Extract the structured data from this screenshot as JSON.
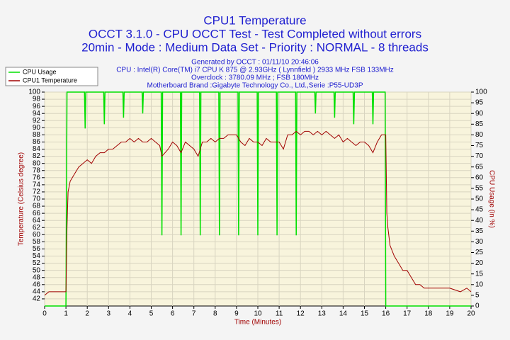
{
  "chart_data": {
    "type": "line",
    "title": "CPU1 Temperature",
    "subtitles": [
      "OCCT 3.1.0 - CPU OCCT Test - Test Completed without errors",
      "20min - Mode : Medium Data Set - Priority : NORMAL - 8 threads"
    ],
    "info": [
      "Generated by OCCT : 01/11/10 20:46:06",
      "CPU : Intel(R) Core(TM) i7 CPU K 875 @ 2.93GHz ( Lynnfield ) 2933 MHz FSB 133MHz",
      "Overclock : 3780.09 MHz ; FSB 180MHz",
      "Motherboard Brand :Gigabyte Technology Co., Ltd.,Serie :P55-UD3P"
    ],
    "xlabel": "Time (Minutes)",
    "ylabel": "Temperature (Celsius degree)",
    "y2label": "CPU Usage (in %)",
    "xlim": [
      0,
      20
    ],
    "xticks": [
      0,
      1,
      2,
      3,
      4,
      5,
      6,
      7,
      8,
      9,
      10,
      11,
      12,
      13,
      14,
      15,
      16,
      17,
      18,
      19,
      20
    ],
    "ylim": [
      40,
      100
    ],
    "yticks": [
      42,
      44,
      46,
      48,
      50,
      52,
      54,
      56,
      58,
      60,
      62,
      64,
      66,
      68,
      70,
      72,
      74,
      76,
      78,
      80,
      82,
      84,
      86,
      88,
      90,
      92,
      94,
      96,
      98,
      100
    ],
    "y2lim": [
      0,
      100
    ],
    "y2ticks": [
      0,
      5,
      10,
      15,
      20,
      25,
      30,
      35,
      40,
      45,
      50,
      55,
      60,
      65,
      70,
      75,
      80,
      85,
      90,
      95,
      100
    ],
    "grid": true,
    "legend": "upper left",
    "series": [
      {
        "name": "CPU Usage",
        "color": "#00e000",
        "axis": "y2",
        "x": [
          0,
          1,
          1.05,
          1.87,
          1.9,
          1.93,
          2.77,
          2.8,
          2.83,
          3.67,
          3.7,
          3.73,
          4.57,
          4.6,
          4.63,
          5.47,
          5.5,
          5.53,
          6.37,
          6.4,
          6.43,
          7.27,
          7.3,
          7.33,
          8.17,
          8.2,
          8.23,
          9.07,
          9.1,
          9.13,
          9.97,
          10,
          10.03,
          10.87,
          10.9,
          10.93,
          11.77,
          11.8,
          11.83,
          12.67,
          12.7,
          12.73,
          13.57,
          13.6,
          13.63,
          14.47,
          14.5,
          14.53,
          15.37,
          15.4,
          15.43,
          15.97,
          16,
          20
        ],
        "values": [
          0,
          0,
          100,
          100,
          83,
          100,
          100,
          85,
          100,
          100,
          88,
          100,
          100,
          90,
          100,
          100,
          33,
          100,
          100,
          33,
          100,
          100,
          33,
          100,
          100,
          33,
          100,
          100,
          33,
          100,
          100,
          33,
          100,
          100,
          33,
          100,
          100,
          33,
          100,
          100,
          90,
          100,
          100,
          88,
          100,
          100,
          85,
          100,
          100,
          85,
          100,
          100,
          0,
          0
        ]
      },
      {
        "name": "CPU1 Temperature",
        "color": "#a00000",
        "axis": "y",
        "x": [
          0,
          0.2,
          0.5,
          1,
          1.05,
          1.1,
          1.2,
          1.4,
          1.6,
          1.8,
          2,
          2.2,
          2.4,
          2.6,
          2.8,
          3,
          3.2,
          3.4,
          3.6,
          3.8,
          4,
          4.2,
          4.4,
          4.6,
          4.8,
          5,
          5.2,
          5.4,
          5.5,
          5.8,
          6,
          6.2,
          6.4,
          6.6,
          6.8,
          7,
          7.2,
          7.4,
          7.6,
          7.8,
          8,
          8.2,
          8.4,
          8.6,
          8.8,
          9,
          9.2,
          9.4,
          9.6,
          9.8,
          10,
          10.2,
          10.4,
          10.6,
          10.8,
          11,
          11.2,
          11.4,
          11.6,
          11.8,
          12,
          12.2,
          12.4,
          12.6,
          12.8,
          13,
          13.2,
          13.4,
          13.6,
          13.8,
          14,
          14.2,
          14.4,
          14.6,
          14.8,
          15,
          15.2,
          15.4,
          15.6,
          15.8,
          16,
          16.05,
          16.1,
          16.2,
          16.4,
          16.6,
          16.8,
          17,
          17.2,
          17.4,
          17.6,
          17.8,
          18,
          18.5,
          19,
          19.5,
          19.8,
          20
        ],
        "values": [
          43,
          44,
          44,
          44,
          62,
          72,
          75,
          77,
          79,
          80,
          81,
          80,
          82,
          83,
          83,
          84,
          84,
          85,
          86,
          86,
          87,
          86,
          87,
          86,
          86,
          87,
          86,
          85,
          82,
          84,
          86,
          85,
          83,
          86,
          85,
          84,
          82,
          86,
          86,
          87,
          86,
          87,
          87,
          88,
          88,
          88,
          86,
          85,
          87,
          86,
          86,
          85,
          87,
          86,
          86,
          86,
          84,
          88,
          88,
          89,
          88,
          89,
          89,
          88,
          89,
          88,
          89,
          88,
          87,
          88,
          86,
          87,
          86,
          85,
          86,
          86,
          85,
          83,
          86,
          88,
          88,
          66,
          62,
          57,
          54,
          52,
          50,
          50,
          48,
          46,
          46,
          45,
          45,
          45,
          45,
          44,
          45,
          44
        ]
      }
    ]
  }
}
